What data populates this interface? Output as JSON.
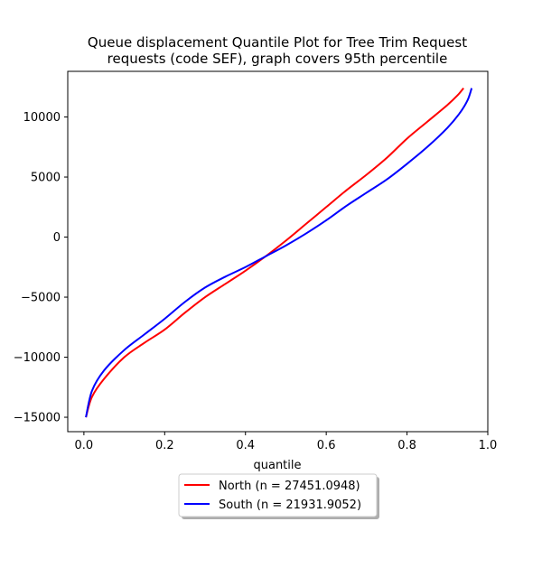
{
  "chart_data": {
    "type": "line",
    "title_line1": "Queue displacement Quantile Plot for Tree Trim Request",
    "title_line2": "requests (code SEF), graph covers 95th percentile",
    "xlabel": "quantile",
    "ylabel": "",
    "xlim": [
      -0.04,
      1.0
    ],
    "ylim": [
      -16200,
      13800
    ],
    "xticks": [
      0.0,
      0.2,
      0.4,
      0.6,
      0.8,
      1.0
    ],
    "xtick_labels": [
      "0.0",
      "0.2",
      "0.4",
      "0.6",
      "0.8",
      "1.0"
    ],
    "yticks": [
      -15000,
      -10000,
      -5000,
      0,
      5000,
      10000
    ],
    "ytick_labels": [
      "−15000",
      "−10000",
      "−5000",
      "0",
      "5000",
      "10000"
    ],
    "grid": false,
    "legend_position": "below plot, centered",
    "series": [
      {
        "name": "North (n = 27451.0948)",
        "color": "#ff0000",
        "x": [
          0.005,
          0.02,
          0.05,
          0.1,
          0.15,
          0.2,
          0.25,
          0.3,
          0.35,
          0.4,
          0.45,
          0.5,
          0.55,
          0.6,
          0.65,
          0.7,
          0.75,
          0.8,
          0.85,
          0.9,
          0.925,
          0.94
        ],
        "y": [
          -15000,
          -13300,
          -11800,
          -10000,
          -8800,
          -7700,
          -6300,
          -5000,
          -3900,
          -2800,
          -1600,
          -300,
          1100,
          2500,
          3900,
          5200,
          6600,
          8200,
          9600,
          11000,
          11800,
          12400
        ]
      },
      {
        "name": "South (n = 21931.9052)",
        "color": "#0000ff",
        "x": [
          0.005,
          0.02,
          0.05,
          0.1,
          0.15,
          0.2,
          0.25,
          0.3,
          0.35,
          0.4,
          0.45,
          0.5,
          0.55,
          0.6,
          0.65,
          0.7,
          0.75,
          0.8,
          0.85,
          0.9,
          0.93,
          0.95,
          0.96
        ],
        "y": [
          -15000,
          -12800,
          -11100,
          -9400,
          -8100,
          -6800,
          -5400,
          -4200,
          -3300,
          -2500,
          -1600,
          -700,
          300,
          1400,
          2600,
          3700,
          4800,
          6100,
          7500,
          9100,
          10300,
          11400,
          12400
        ]
      }
    ]
  }
}
